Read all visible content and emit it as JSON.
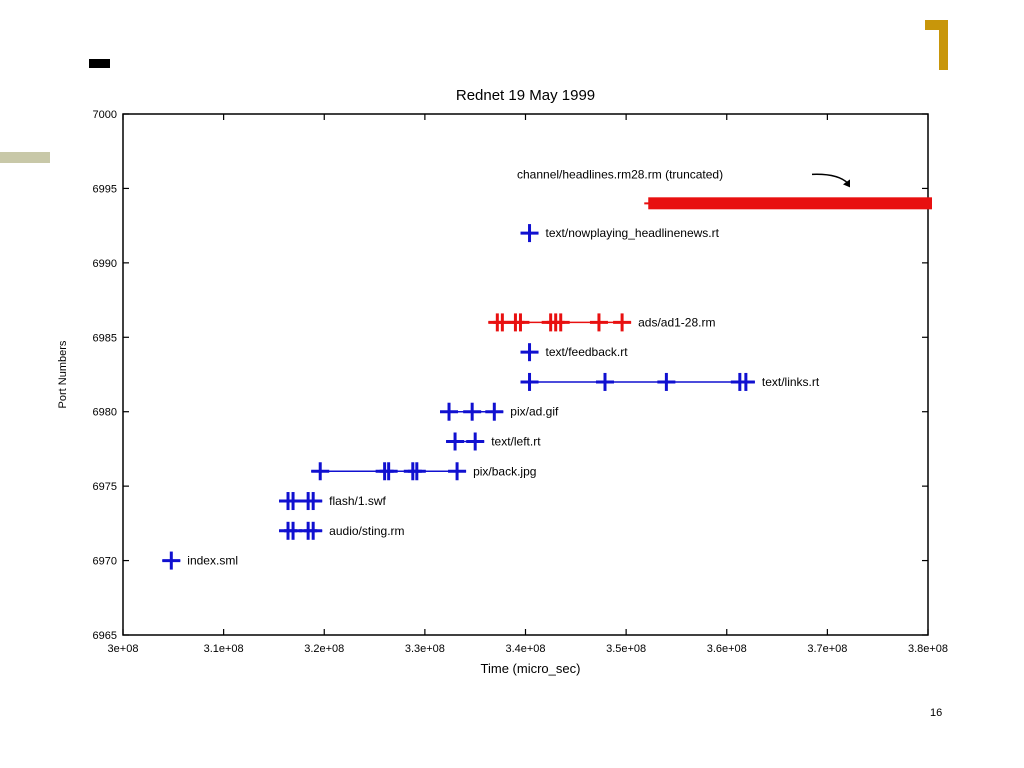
{
  "page": {
    "number": "16"
  },
  "colors": {
    "blue": "#1010d0",
    "red": "#e81010",
    "gold": "#c8960a",
    "olive": "#c8c8a8"
  },
  "chart_data": {
    "type": "scatter",
    "title": "Rednet 19 May 1999",
    "xlabel": "Time (micro_sec)",
    "ylabel": "Port Numbers",
    "xlim": [
      300000000,
      380000000
    ],
    "ylim": [
      6965,
      7000
    ],
    "x_ticks": [
      {
        "value": 300000000,
        "label": "3e+08"
      },
      {
        "value": 310000000,
        "label": "3.1e+08"
      },
      {
        "value": 320000000,
        "label": "3.2e+08"
      },
      {
        "value": 330000000,
        "label": "3.3e+08"
      },
      {
        "value": 340000000,
        "label": "3.4e+08"
      },
      {
        "value": 350000000,
        "label": "3.5e+08"
      },
      {
        "value": 360000000,
        "label": "3.6e+08"
      },
      {
        "value": 370000000,
        "label": "3.7e+08"
      },
      {
        "value": 380000000,
        "label": "3.8e+08"
      }
    ],
    "y_ticks": [
      {
        "value": 6965,
        "label": "6965"
      },
      {
        "value": 6970,
        "label": "6970"
      },
      {
        "value": 6975,
        "label": "6975"
      },
      {
        "value": 6980,
        "label": "6980"
      },
      {
        "value": 6985,
        "label": "6985"
      },
      {
        "value": 6990,
        "label": "6990"
      },
      {
        "value": 6995,
        "label": "6995"
      },
      {
        "value": 7000,
        "label": "7000"
      }
    ],
    "series": [
      {
        "label": "index.sml",
        "color": "blue",
        "y": 6970,
        "points": [
          304800000
        ]
      },
      {
        "label": "audio/sting.rm",
        "color": "blue",
        "y": 6972,
        "points": [
          316400000,
          316900000,
          318400000,
          318900000
        ]
      },
      {
        "label": "flash/1.swf",
        "color": "blue",
        "y": 6974,
        "points": [
          316400000,
          316900000,
          318400000,
          318900000
        ]
      },
      {
        "label": "pix/back.jpg",
        "color": "blue",
        "y": 6976,
        "points": [
          319600000,
          326000000,
          326400000,
          328800000,
          329200000,
          333200000
        ]
      },
      {
        "label": "text/left.rt",
        "color": "blue",
        "y": 6978,
        "points": [
          333000000,
          335000000
        ]
      },
      {
        "label": "pix/ad.gif",
        "color": "blue",
        "y": 6980,
        "points": [
          332400000,
          334700000,
          336900000
        ]
      },
      {
        "label": "text/links.rt",
        "color": "blue",
        "y": 6982,
        "points": [
          340400000,
          347900000,
          354000000,
          361300000,
          361900000
        ]
      },
      {
        "label": "text/feedback.rt",
        "color": "blue",
        "y": 6984,
        "points": [
          340400000
        ]
      },
      {
        "label": "ads/ad1-28.rm",
        "color": "red",
        "y": 6986,
        "points": [
          337200000,
          337700000,
          339000000,
          339500000,
          342500000,
          343000000,
          343500000,
          347300000,
          349600000
        ]
      },
      {
        "label": "text/nowplaying_headlinenews.rt",
        "color": "blue",
        "y": 6992,
        "points": [
          340400000
        ]
      },
      {
        "label": "channel/headlines.rm28.rm (truncated)",
        "color": "red",
        "y": 6994,
        "range": [
          352200000,
          380500000
        ]
      }
    ]
  }
}
